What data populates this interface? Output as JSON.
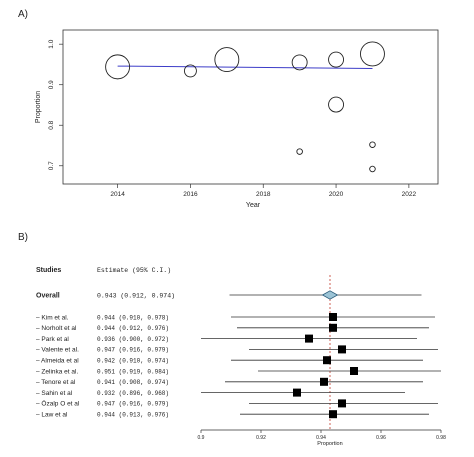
{
  "panels": {
    "a_label": "A)",
    "b_label": "B)"
  },
  "chart_data": [
    {
      "type": "scatter",
      "panel": "A)",
      "xlabel": "Year",
      "ylabel": "Proportion",
      "xlim": [
        2012.5,
        2022.8
      ],
      "ylim": [
        0.655,
        1.035
      ],
      "xticks": [
        "2014",
        "2016",
        "2018",
        "2020",
        "2022"
      ],
      "yticks": [
        "0.7",
        "0.8",
        "0.9",
        "1.0"
      ],
      "grid": false,
      "points": [
        {
          "x": 2014.0,
          "y": 0.944,
          "size": "large"
        },
        {
          "x": 2016.0,
          "y": 0.934,
          "size": "small"
        },
        {
          "x": 2017.0,
          "y": 0.962,
          "size": "large"
        },
        {
          "x": 2019.0,
          "y": 0.955,
          "size": "medium"
        },
        {
          "x": 2019.0,
          "y": 0.735,
          "size": "tiny"
        },
        {
          "x": 2020.0,
          "y": 0.962,
          "size": "medium"
        },
        {
          "x": 2020.0,
          "y": 0.851,
          "size": "medium"
        },
        {
          "x": 2021.0,
          "y": 0.976,
          "size": "large"
        },
        {
          "x": 2021.0,
          "y": 0.752,
          "size": "tiny"
        },
        {
          "x": 2021.0,
          "y": 0.692,
          "size": "tiny"
        }
      ],
      "trend": {
        "x": [
          2014.0,
          2021.0
        ],
        "y": [
          0.946,
          0.94
        ],
        "color": "#3c3cc8"
      }
    },
    {
      "type": "forest",
      "panel": "B)",
      "header_studies": "Studies",
      "header_estimate": "Estimate (95% C.I.)",
      "xlabel": "Proportion",
      "xlim": [
        0.9,
        0.98
      ],
      "xticks": [
        "0.9",
        "0.92",
        "0.94",
        "0.96",
        "0.98"
      ],
      "reference_line": 0.943,
      "overall": {
        "label": "Overall",
        "text": "0.943 (0.912, 0.974)",
        "est": 0.943,
        "lo": 0.912,
        "hi": 0.974
      },
      "studies": [
        {
          "label": "Kim et al.",
          "text": "0.944 (0.910, 0.978)",
          "est": 0.944,
          "lo": 0.91,
          "hi": 0.978
        },
        {
          "label": "Norholt et al",
          "text": "0.944 (0.912, 0.976)",
          "est": 0.944,
          "lo": 0.912,
          "hi": 0.976
        },
        {
          "label": "Park et al",
          "text": "0.936 (0.900, 0.972)",
          "est": 0.936,
          "lo": 0.9,
          "hi": 0.972
        },
        {
          "label": "Valente et al.",
          "text": "0.947 (0.916, 0.979)",
          "est": 0.947,
          "lo": 0.916,
          "hi": 0.979
        },
        {
          "label": "Almeida et al",
          "text": "0.942 (0.910, 0.974)",
          "est": 0.942,
          "lo": 0.91,
          "hi": 0.974
        },
        {
          "label": "Zelinka et al.",
          "text": "0.951 (0.919, 0.984)",
          "est": 0.951,
          "lo": 0.919,
          "hi": 0.984
        },
        {
          "label": "Tenore et al",
          "text": "0.941 (0.908, 0.974)",
          "est": 0.941,
          "lo": 0.908,
          "hi": 0.974
        },
        {
          "label": "Sahin et al",
          "text": "0.932 (0.896, 0.968)",
          "est": 0.932,
          "lo": 0.896,
          "hi": 0.968
        },
        {
          "label": "Özalp O et al",
          "text": "0.947 (0.916, 0.979)",
          "est": 0.947,
          "lo": 0.916,
          "hi": 0.979
        },
        {
          "label": "Law et al",
          "text": "0.944 (0.913, 0.976)",
          "est": 0.944,
          "lo": 0.913,
          "hi": 0.976
        }
      ],
      "colors": {
        "overall_fill": "#9cc4d6",
        "overall_stroke": "#2a5a78",
        "reference": "#c0392b",
        "box": "#000000"
      }
    }
  ]
}
